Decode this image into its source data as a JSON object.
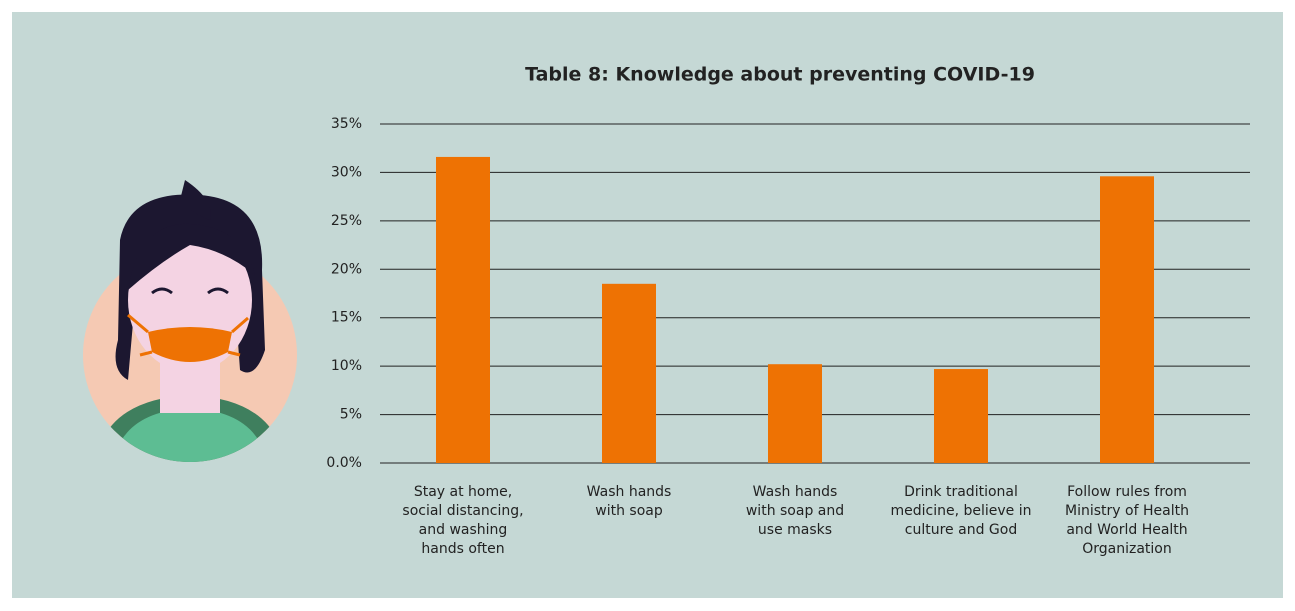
{
  "chart_data": {
    "type": "bar",
    "title": "Table 8: Knowledge about preventing COVID-19",
    "categories": [
      "Stay at home,\nsocial distancing,\nand  washing\nhands often",
      "Wash hands\nwith soap",
      "Wash hands\nwith soap and\nuse masks",
      "Drink traditional\nmedicine, believe in\nculture and God",
      "Follow rules from\nMinistry of Health\nand World Health\nOrganization"
    ],
    "values": [
      31.6,
      18.5,
      10.2,
      9.7,
      29.6
    ],
    "color": "#ee7203",
    "ylim": [
      0,
      35
    ],
    "yticks": [
      {
        "value": 0,
        "label": "0.0%"
      },
      {
        "value": 5,
        "label": "5%"
      },
      {
        "value": 10,
        "label": "10%"
      },
      {
        "value": 15,
        "label": "15%"
      },
      {
        "value": 20,
        "label": "20%"
      },
      {
        "value": 25,
        "label": "25%"
      },
      {
        "value": 30,
        "label": "30%"
      },
      {
        "value": 35,
        "label": "35%"
      }
    ],
    "grid": true
  }
}
